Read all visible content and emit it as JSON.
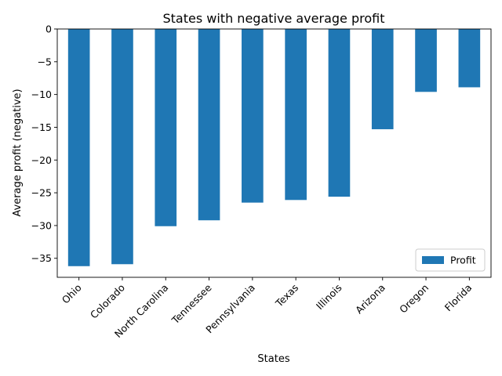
{
  "chart_data": {
    "type": "bar",
    "title": "States with negative average profit",
    "xlabel": "States",
    "ylabel": "Average profit (negative)",
    "categories": [
      "Ohio",
      "Colorado",
      "North Carolina",
      "Tennessee",
      "Pennsylvania",
      "Texas",
      "Illinois",
      "Arizona",
      "Oregon",
      "Florida"
    ],
    "series": [
      {
        "name": "Profit",
        "color": "#1f77b4",
        "values": [
          -36.2,
          -35.9,
          -30.1,
          -29.2,
          -26.5,
          -26.1,
          -25.6,
          -15.3,
          -9.6,
          -8.9
        ]
      }
    ],
    "ylim": [
      -37.9,
      0
    ],
    "yticks": [
      0,
      -5,
      -10,
      -15,
      -20,
      -25,
      -30,
      -35
    ],
    "grid": false,
    "legend_position": "bottom-right"
  }
}
